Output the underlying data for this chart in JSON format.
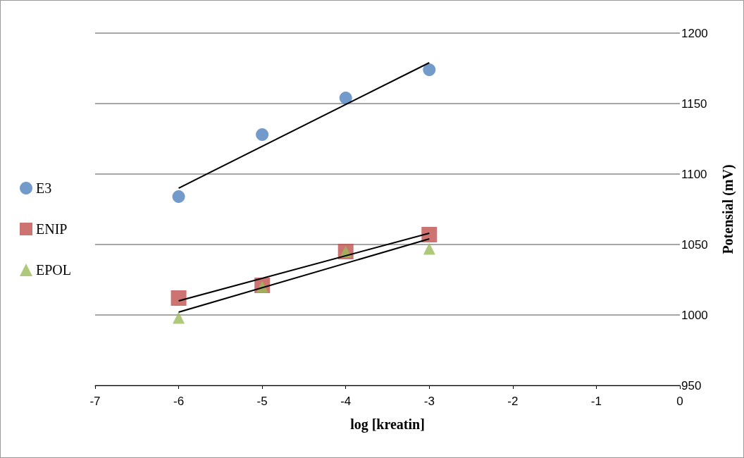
{
  "chart_data": {
    "type": "scatter",
    "xlabel": "log [kreatin]",
    "ylabel": "Potensial (mV)",
    "xlim": [
      -7,
      0
    ],
    "xticks": [
      -7,
      -6,
      -5,
      -4,
      -3,
      -2,
      -1,
      0
    ],
    "ylim": [
      950,
      1200
    ],
    "yticks": [
      950,
      1000,
      1050,
      1100,
      1150,
      1200
    ],
    "grid": "y",
    "legend": "left",
    "series": [
      {
        "name": "E3",
        "color": "#4f81bd",
        "marker": "circle",
        "x": [
          -6,
          -5,
          -4,
          -3
        ],
        "values": [
          1084,
          1128,
          1154,
          1174
        ]
      },
      {
        "name": "ENIP",
        "color": "#c0504d",
        "marker": "square",
        "x": [
          -6,
          -5,
          -4,
          -3
        ],
        "values": [
          1012,
          1021,
          1045,
          1057
        ]
      },
      {
        "name": "EPOL",
        "color": "#9bbb59",
        "marker": "triangle",
        "x": [
          -6,
          -5,
          -4,
          -3
        ],
        "values": [
          998,
          1020,
          1045,
          1047
        ]
      },
      {
        "type": "line",
        "color": "#000000",
        "marker": "none",
        "x": [
          -6,
          -3
        ],
        "values": [
          1090,
          1179
        ]
      },
      {
        "type": "line",
        "color": "#000000",
        "marker": "none",
        "x": [
          -6,
          -3
        ],
        "values": [
          1010,
          1058
        ]
      },
      {
        "type": "line",
        "color": "#000000",
        "marker": "none",
        "x": [
          -6,
          -3
        ],
        "values": [
          1002,
          1054
        ]
      }
    ]
  }
}
